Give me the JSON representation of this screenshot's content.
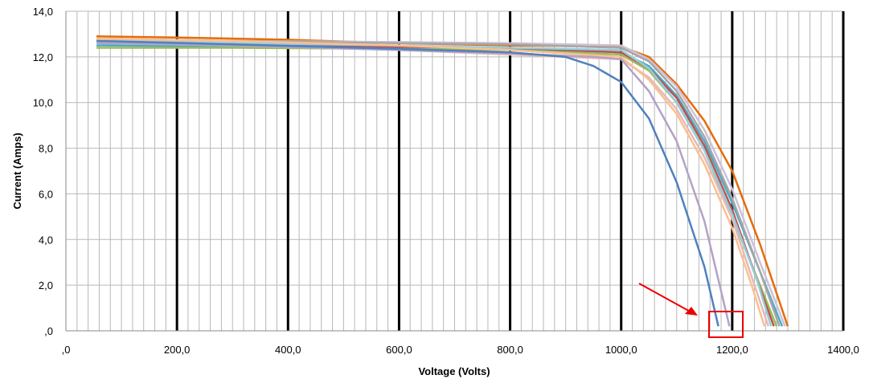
{
  "chart_data": {
    "type": "line",
    "x_label": "Voltage (Volts)",
    "y_label": "Current (Amps)",
    "xlim": [
      0,
      1400
    ],
    "ylim": [
      0,
      14
    ],
    "xticks": [
      {
        "value": 0,
        "label": ",0"
      },
      {
        "value": 200,
        "label": "200,0"
      },
      {
        "value": 400,
        "label": "400,0"
      },
      {
        "value": 600,
        "label": "600,0"
      },
      {
        "value": 800,
        "label": "800,0"
      },
      {
        "value": 1000,
        "label": "1000,0"
      },
      {
        "value": 1200,
        "label": "1200,0"
      },
      {
        "value": 1400,
        "label": "1400,0"
      }
    ],
    "yticks": [
      {
        "value": 0,
        "label": ",0"
      },
      {
        "value": 2,
        "label": "2,0"
      },
      {
        "value": 4,
        "label": "4,0"
      },
      {
        "value": 6,
        "label": "6,0"
      },
      {
        "value": 8,
        "label": "8,0"
      },
      {
        "value": 10,
        "label": "10,0"
      },
      {
        "value": 12,
        "label": "12,0"
      },
      {
        "value": 14,
        "label": "14,0"
      }
    ],
    "grid": true,
    "x_minor_step": 20,
    "series": [
      {
        "color": "#e46c0a",
        "x": [
          55,
          200,
          400,
          600,
          800,
          1000,
          1050,
          1100,
          1150,
          1200,
          1250,
          1300
        ],
        "values": [
          12.9,
          12.85,
          12.75,
          12.6,
          12.5,
          12.45,
          12.0,
          10.8,
          9.2,
          7.0,
          3.8,
          0.2
        ]
      },
      {
        "color": "#ccc1da",
        "x": [
          55,
          300,
          600,
          800,
          1000,
          1050,
          1100,
          1150,
          1200,
          1250,
          1295
        ],
        "values": [
          12.75,
          12.7,
          12.65,
          12.6,
          12.5,
          11.9,
          10.7,
          8.8,
          6.2,
          3.0,
          0.2
        ]
      },
      {
        "color": "#4bacc6",
        "x": [
          55,
          300,
          600,
          800,
          1000,
          1050,
          1100,
          1150,
          1200,
          1250,
          1290
        ],
        "values": [
          12.5,
          12.45,
          12.4,
          12.35,
          12.2,
          11.6,
          10.3,
          8.3,
          5.6,
          2.6,
          0.2
        ]
      },
      {
        "color": "#a6a6a6",
        "x": [
          55,
          300,
          600,
          800,
          1000,
          1050,
          1100,
          1150,
          1200,
          1250,
          1285
        ],
        "values": [
          12.8,
          12.7,
          12.6,
          12.55,
          12.4,
          11.8,
          10.5,
          8.5,
          5.8,
          2.6,
          0.2
        ]
      },
      {
        "color": "#9bbb59",
        "x": [
          55,
          300,
          600,
          800,
          1000,
          1050,
          1100,
          1150,
          1200,
          1250,
          1280
        ],
        "values": [
          12.4,
          12.4,
          12.35,
          12.3,
          12.1,
          11.4,
          10.0,
          7.9,
          5.0,
          2.0,
          0.2
        ]
      },
      {
        "color": "#c0504d",
        "x": [
          55,
          300,
          600,
          800,
          1000,
          1050,
          1100,
          1150,
          1200,
          1245,
          1275
        ],
        "values": [
          12.6,
          12.55,
          12.45,
          12.4,
          12.2,
          11.5,
          10.2,
          8.1,
          5.3,
          2.2,
          0.2
        ]
      },
      {
        "color": "#93cddd",
        "x": [
          55,
          300,
          600,
          800,
          1000,
          1050,
          1100,
          1150,
          1200,
          1245,
          1270
        ],
        "values": [
          12.7,
          12.6,
          12.5,
          12.4,
          12.3,
          11.5,
          10.0,
          7.9,
          5.1,
          2.2,
          0.2
        ]
      },
      {
        "color": "#e6b9b8",
        "x": [
          55,
          300,
          600,
          800,
          1000,
          1050,
          1100,
          1150,
          1200,
          1240,
          1265
        ],
        "values": [
          12.6,
          12.5,
          12.3,
          12.1,
          11.9,
          11.1,
          9.7,
          7.6,
          4.9,
          2.0,
          0.2
        ]
      },
      {
        "color": "#fac090",
        "x": [
          55,
          300,
          600,
          800,
          1000,
          1050,
          1100,
          1150,
          1200,
          1235,
          1258
        ],
        "values": [
          12.8,
          12.7,
          12.5,
          12.3,
          12.0,
          11.0,
          9.5,
          7.3,
          4.5,
          2.0,
          0.2
        ]
      },
      {
        "color": "#b3a2c7",
        "x": [
          55,
          300,
          600,
          800,
          950,
          1000,
          1050,
          1100,
          1150,
          1195
        ],
        "values": [
          12.6,
          12.5,
          12.3,
          12.15,
          12.0,
          11.9,
          10.5,
          8.3,
          4.8,
          0.2
        ]
      },
      {
        "color": "#4f81bd",
        "x": [
          55,
          300,
          600,
          800,
          900,
          950,
          1000,
          1050,
          1100,
          1150,
          1175
        ],
        "values": [
          12.7,
          12.55,
          12.35,
          12.2,
          12.0,
          11.6,
          10.9,
          9.3,
          6.5,
          2.8,
          0.2
        ]
      }
    ]
  }
}
